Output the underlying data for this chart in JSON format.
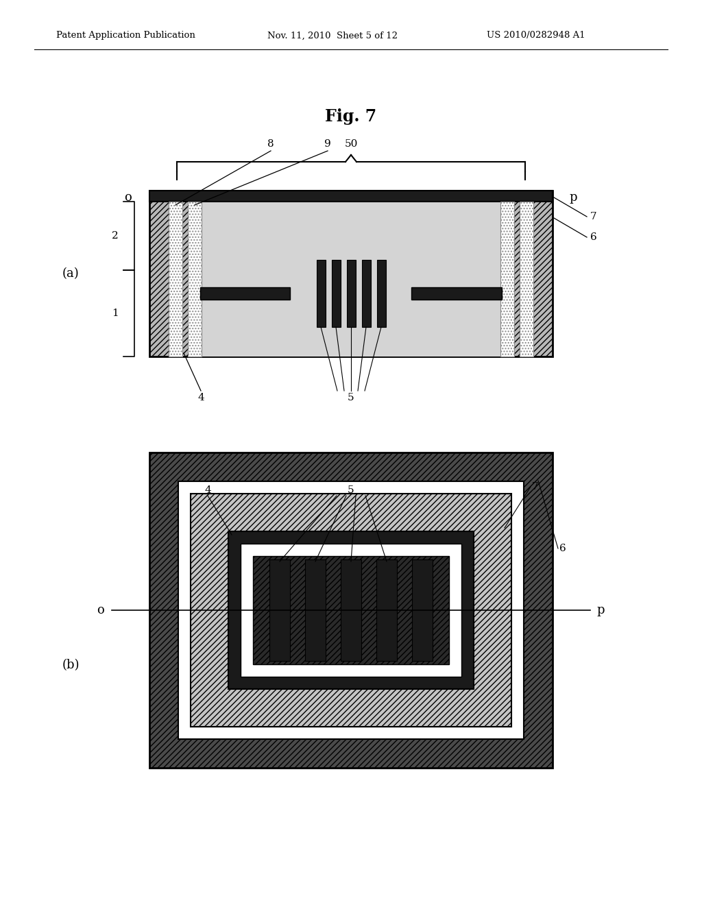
{
  "title": "Fig. 7",
  "header_left": "Patent Application Publication",
  "header_center": "Nov. 11, 2010  Sheet 5 of 12",
  "header_right": "US 2010/0282948 A1",
  "background_color": "#ffffff",
  "label_a": "(a)",
  "label_b": "(b)",
  "label_o": "o",
  "label_p": "p",
  "num_1": "1",
  "num_2": "2",
  "num_4": "4",
  "num_5": "5",
  "num_6": "6",
  "num_7": "7",
  "num_8": "8",
  "num_9": "9",
  "num_50": "50"
}
